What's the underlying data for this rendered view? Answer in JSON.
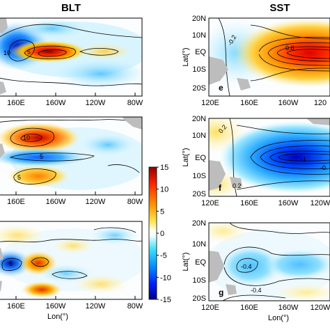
{
  "chart_data": [
    {
      "type": "heatmap",
      "title": "BLT",
      "panels": [
        {
          "id": "a",
          "label": "",
          "x_ticks": [
            "160E",
            "160W",
            "120W",
            "80W"
          ],
          "contour_labels": [
            "10",
            "5"
          ],
          "anomaly": "positive"
        },
        {
          "id": "b",
          "label": "",
          "x_ticks": [
            "160E",
            "160W",
            "120W",
            "80W"
          ],
          "contour_labels": [
            "10",
            "5",
            "5"
          ],
          "anomaly": "positive"
        },
        {
          "id": "c",
          "label": "",
          "x_ticks": [
            "160E",
            "160W",
            "120W",
            "80W"
          ],
          "xlabel": "Lon(°)",
          "contour_labels": [
            "5"
          ],
          "anomaly": "mixed"
        }
      ],
      "colorbar": {
        "ticks": [
          15,
          10,
          5,
          0,
          -5,
          -10,
          -15
        ],
        "range": [
          -15,
          15
        ],
        "colors": [
          "#00008f",
          "#0050ff",
          "#00c8ff",
          "#c8ffff",
          "#ffffff",
          "#ffffc8",
          "#ffc800",
          "#ff5000",
          "#8f0000"
        ]
      }
    },
    {
      "type": "heatmap",
      "title": "SST",
      "panels": [
        {
          "id": "e",
          "label": "e",
          "y_ticks": [
            "20N",
            "10N",
            "EQ",
            "10S",
            "20S"
          ],
          "x_ticks": [
            "120E",
            "160E",
            "160W",
            "120"
          ],
          "ylabel": "Lat(°)",
          "contour_labels": [
            "-0.2",
            "0.8"
          ],
          "anomaly": "positive"
        },
        {
          "id": "f",
          "label": "f",
          "y_ticks": [
            "20N",
            "10N",
            "EQ",
            "10S",
            "20S"
          ],
          "x_ticks": [
            "120E",
            "160E",
            "160W",
            "120W"
          ],
          "ylabel": "Lat(°)",
          "contour_labels": [
            "0.2",
            "-1",
            "-0.",
            "0.2"
          ],
          "anomaly": "negative"
        },
        {
          "id": "g",
          "label": "g",
          "y_ticks": [
            "20N",
            "10N",
            "EQ",
            "10S",
            "20S"
          ],
          "x_ticks": [
            "120E",
            "160E",
            "160W",
            "120W"
          ],
          "ylabel": "Lat(°)",
          "xlabel": "Lon(°)",
          "contour_labels": [
            "-0.4",
            "-0.4"
          ],
          "anomaly": "negative"
        }
      ]
    }
  ]
}
